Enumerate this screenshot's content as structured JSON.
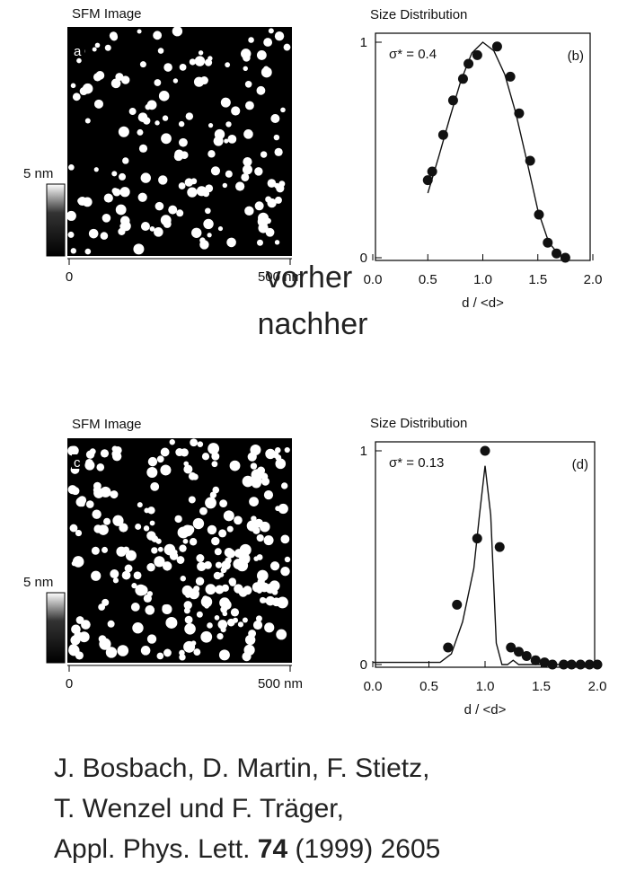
{
  "panels": [
    {
      "image_title": "SFM Image",
      "label": "a",
      "scale_label": "5 nm",
      "x_start": "0",
      "x_end": "500 nm"
    },
    {
      "image_title": "SFM Image",
      "label": "c",
      "scale_label": "5 nm",
      "x_start": "0",
      "x_end": "500 nm"
    }
  ],
  "captions": [
    "vorher",
    "nachher"
  ],
  "citation": {
    "lines": [
      "J. Bosbach, D. Martin, F. Stietz,",
      "T. Wenzel und F. Träger,"
    ],
    "journal": "Appl. Phys. Lett.",
    "volume": "74",
    "rest": "(1999) 2605"
  },
  "chart_data": [
    {
      "type": "scatter",
      "title": "Size Distribution",
      "annotation": "σ* = 0.4",
      "panel_label": "(b)",
      "x_label": "d / <d>",
      "xlim": [
        0,
        2
      ],
      "xticks": [
        {
          "value": 0,
          "label": "0.0"
        },
        {
          "value": 0.5,
          "label": "0.5"
        },
        {
          "value": 1,
          "label": "1.0"
        },
        {
          "value": 1.5,
          "label": "1.5"
        },
        {
          "value": 2,
          "label": "2.0"
        }
      ],
      "ylim": [
        0,
        1
      ],
      "yticks": [
        0,
        1
      ],
      "series": [
        {
          "mode": "markers",
          "color": "#111",
          "x": [
            0.5,
            0.54,
            0.64,
            0.73,
            0.82,
            0.87,
            0.95,
            1.13,
            1.25,
            1.33,
            1.43,
            1.51,
            1.59,
            1.67,
            1.75
          ],
          "values": [
            0.36,
            0.4,
            0.57,
            0.73,
            0.83,
            0.9,
            0.94,
            0.98,
            0.84,
            0.67,
            0.45,
            0.2,
            0.07,
            0.02,
            0
          ]
        },
        {
          "mode": "line",
          "color": "#111",
          "x": [
            0.5,
            0.6,
            0.7,
            0.8,
            0.9,
            1.0,
            1.1,
            1.2,
            1.3,
            1.4,
            1.5,
            1.6,
            1.7,
            1.75
          ],
          "values": [
            0.3,
            0.47,
            0.65,
            0.82,
            0.95,
            1.0,
            0.96,
            0.85,
            0.67,
            0.45,
            0.22,
            0.07,
            0.01,
            0
          ]
        }
      ]
    },
    {
      "type": "scatter",
      "title": "Size Distribution",
      "annotation": "σ* = 0.13",
      "panel_label": "(d)",
      "x_label": "d / <d>",
      "xlim": [
        0,
        2
      ],
      "xticks": [
        {
          "value": 0,
          "label": "0.0"
        },
        {
          "value": 0.5,
          "label": "0.5"
        },
        {
          "value": 1,
          "label": "1.0"
        },
        {
          "value": 1.5,
          "label": "1.5"
        },
        {
          "value": 2,
          "label": "2.0"
        }
      ],
      "ylim": [
        0,
        1
      ],
      "yticks": [
        0,
        1
      ],
      "series": [
        {
          "mode": "markers",
          "color": "#111",
          "x": [
            0.67,
            0.75,
            0.93,
            1.0,
            1.13,
            1.23,
            1.3,
            1.37,
            1.45,
            1.53,
            1.6,
            1.7,
            1.77,
            1.85,
            1.93,
            2.0
          ],
          "values": [
            0.08,
            0.28,
            0.59,
            1.0,
            0.55,
            0.08,
            0.06,
            0.04,
            0.02,
            0.01,
            0,
            0,
            0,
            0,
            0,
            0
          ]
        },
        {
          "mode": "line",
          "color": "#111",
          "x": [
            0,
            0.6,
            0.7,
            0.8,
            0.9,
            0.95,
            1.0,
            1.05,
            1.1,
            1.15,
            1.2,
            1.25,
            1.3,
            2.0
          ],
          "values": [
            0.01,
            0.01,
            0.05,
            0.2,
            0.45,
            0.7,
            0.93,
            0.7,
            0.1,
            0,
            0,
            0.02,
            0,
            0
          ]
        }
      ]
    }
  ]
}
